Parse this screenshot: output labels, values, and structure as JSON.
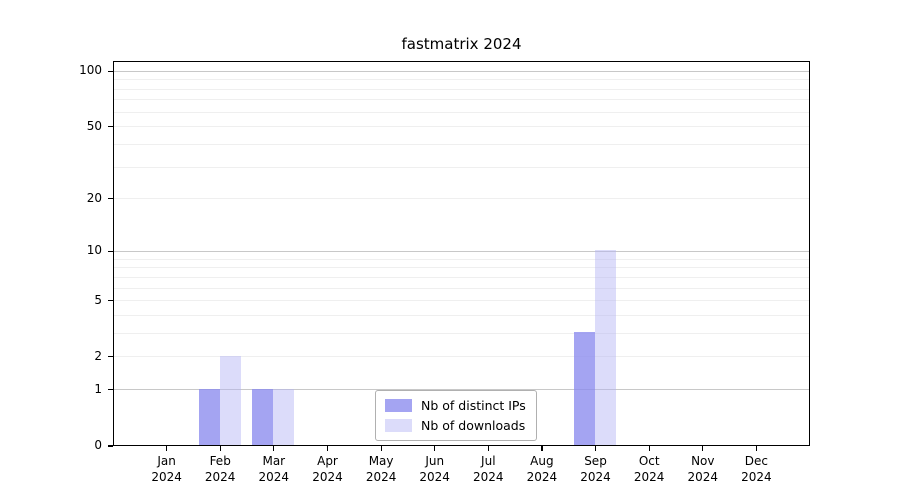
{
  "title": "fastmatrix 2024",
  "chart_data": {
    "type": "bar",
    "title": "fastmatrix 2024",
    "categories": [
      "Jan 2024",
      "Feb 2024",
      "Mar 2024",
      "Apr 2024",
      "May 2024",
      "Jun 2024",
      "Jul 2024",
      "Aug 2024",
      "Sep 2024",
      "Oct 2024",
      "Nov 2024",
      "Dec 2024"
    ],
    "x_tick_months": [
      "Jan",
      "Feb",
      "Mar",
      "Apr",
      "May",
      "Jun",
      "Jul",
      "Aug",
      "Sep",
      "Oct",
      "Nov",
      "Dec"
    ],
    "x_tick_year": "2024",
    "series": [
      {
        "name": "Nb of distinct IPs",
        "color": "#8a8aee",
        "alpha": 0.78,
        "values": [
          0,
          1,
          1,
          0,
          0,
          0,
          0,
          0,
          3,
          0,
          0,
          0
        ]
      },
      {
        "name": "Nb of downloads",
        "color": "#b1b1f4",
        "alpha": 0.45,
        "values": [
          0,
          2,
          1,
          0,
          0,
          0,
          0,
          0,
          10,
          0,
          0,
          0
        ]
      }
    ],
    "yscale": "log1p",
    "ylabel": "",
    "xlabel": "",
    "ylim": [
      0,
      113.6
    ],
    "y_ticks": [
      0,
      1,
      2,
      5,
      10,
      20,
      50,
      100
    ],
    "y_major_gridlines": [
      1,
      10,
      100
    ],
    "y_minor_gridlines": [
      2,
      3,
      4,
      5,
      6,
      7,
      8,
      9,
      20,
      30,
      40,
      50,
      60,
      70,
      80,
      90
    ],
    "grid": true,
    "legend_position": "lower center",
    "colors": {
      "major_grid": "#c8c8c8",
      "minor_grid": "#efefef",
      "spine": "#000000",
      "legend_border": "#b0b0b0",
      "background": "#ffffff"
    }
  }
}
